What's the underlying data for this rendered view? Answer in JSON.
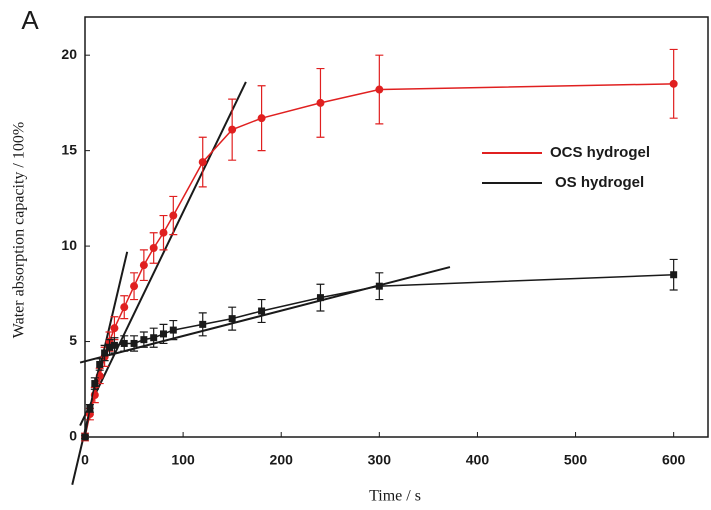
{
  "chart_data": {
    "type": "line",
    "panel_label": "A",
    "x_label": "Time / s",
    "y_label": "Water absorption capacity / 100%",
    "xlim": [
      0,
      635
    ],
    "ylim": [
      0,
      22
    ],
    "xticks": [
      0,
      100,
      200,
      300,
      400,
      500,
      600
    ],
    "yticks": [
      0,
      5,
      10,
      15,
      20
    ],
    "legend": "right",
    "x": [
      0,
      5,
      10,
      15,
      20,
      25,
      30,
      40,
      50,
      60,
      70,
      80,
      90,
      120,
      150,
      180,
      240,
      300,
      600
    ],
    "series": [
      {
        "name": "OCS hydrogel",
        "color": "#e02020",
        "marker": "circle",
        "values": [
          0,
          1.2,
          2.2,
          3.2,
          4.2,
          5.0,
          5.7,
          6.8,
          7.9,
          9.0,
          9.9,
          10.7,
          11.6,
          14.4,
          16.1,
          16.7,
          17.5,
          18.2,
          18.5
        ],
        "errors": [
          0.2,
          0.3,
          0.4,
          0.4,
          0.5,
          0.5,
          0.6,
          0.6,
          0.7,
          0.8,
          0.8,
          0.9,
          1.0,
          1.3,
          1.6,
          1.7,
          1.8,
          1.8,
          1.8
        ]
      },
      {
        "name": "OS hydrogel",
        "color": "#1a1a1a",
        "marker": "square",
        "values": [
          0,
          1.5,
          2.8,
          3.8,
          4.4,
          4.7,
          4.8,
          4.9,
          4.9,
          5.1,
          5.2,
          5.4,
          5.6,
          5.9,
          6.2,
          6.6,
          7.3,
          7.9,
          8.5
        ],
        "errors": [
          0.1,
          0.2,
          0.3,
          0.3,
          0.4,
          0.4,
          0.4,
          0.4,
          0.4,
          0.4,
          0.5,
          0.5,
          0.5,
          0.6,
          0.6,
          0.6,
          0.7,
          0.7,
          0.8
        ]
      }
    ],
    "fit_lines": [
      {
        "color": "#1a1a1a",
        "x": [
          -13,
          43
        ],
        "y": [
          -2.5,
          9.7
        ]
      },
      {
        "color": "#1a1a1a",
        "x": [
          -5,
          164
        ],
        "y": [
          0.6,
          18.6
        ]
      },
      {
        "color": "#1a1a1a",
        "x": [
          -5,
          372
        ],
        "y": [
          3.9,
          8.9
        ]
      }
    ]
  }
}
